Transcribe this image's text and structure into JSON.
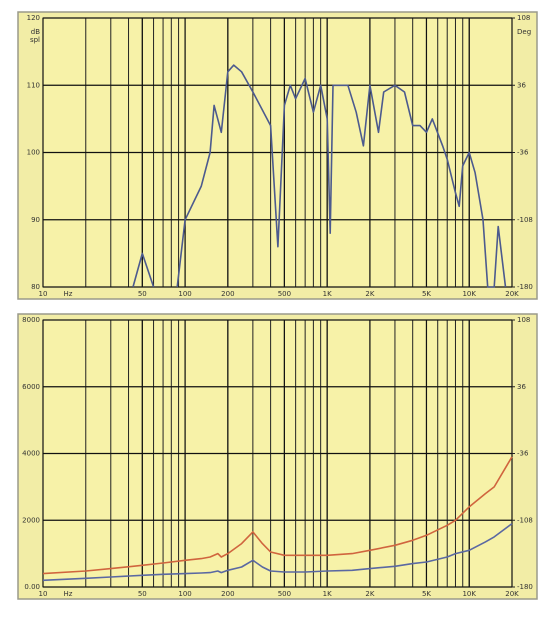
{
  "chart_data": [
    {
      "type": "line",
      "xscale": "log",
      "grid": true,
      "ylabel": [
        "dB",
        "spl"
      ],
      "y2label": "Deg",
      "xlabel": "Hz",
      "xlim": [
        10,
        20000
      ],
      "ylim": [
        80,
        120
      ],
      "y2lim": [
        -180,
        108
      ],
      "xticks": [
        10,
        50,
        100,
        200,
        500,
        {
          "value": 1000,
          "label": "1K"
        },
        {
          "value": 2000,
          "label": "2K"
        },
        {
          "value": 5000,
          "label": "5K"
        },
        {
          "value": 10000,
          "label": "10K"
        },
        {
          "value": 20000,
          "label": "20K"
        }
      ],
      "yticks": [
        80,
        90,
        100,
        110,
        120
      ],
      "y2ticks": [
        -180,
        -108,
        -36,
        36,
        108
      ],
      "series": [
        {
          "color": "#4c5a8e",
          "x": [
            43,
            50,
            60,
            75,
            88,
            100,
            130,
            150,
            160,
            180,
            200,
            220,
            250,
            300,
            400,
            450,
            500,
            550,
            600,
            700,
            800,
            900,
            1000,
            1050,
            1100,
            1400,
            1600,
            1800,
            2000,
            2300,
            2500,
            3000,
            3500,
            4000,
            4500,
            5000,
            5500,
            6500,
            7000,
            8000,
            8500,
            9000,
            10000,
            11000,
            12500,
            13500,
            15000,
            16000,
            18000
          ],
          "values": [
            80,
            85,
            80,
            null,
            80,
            90,
            95,
            100,
            107,
            103,
            112,
            113,
            112,
            109,
            104,
            86,
            107,
            110,
            108,
            111,
            106,
            110,
            105,
            88,
            110,
            110,
            106,
            101,
            110,
            103,
            109,
            110,
            109,
            104,
            104,
            103,
            105,
            101,
            99,
            94,
            92,
            98,
            100,
            97,
            90,
            80,
            80,
            89,
            80
          ]
        }
      ]
    },
    {
      "type": "line",
      "xscale": "log",
      "grid": true,
      "xlabel": "Hz",
      "xlim": [
        10,
        20000
      ],
      "ylim": [
        0,
        8000
      ],
      "y2lim": [
        -180,
        108
      ],
      "xticks": [
        10,
        50,
        100,
        200,
        500,
        {
          "value": 1000,
          "label": "1K"
        },
        {
          "value": 2000,
          "label": "2K"
        },
        {
          "value": 5000,
          "label": "5K"
        },
        {
          "value": 10000,
          "label": "10K"
        },
        {
          "value": 20000,
          "label": "20K"
        }
      ],
      "yticks": [
        {
          "value": 0,
          "label": "0.00"
        },
        2000,
        4000,
        6000,
        8000
      ],
      "y2ticks": [
        -180,
        -108,
        -36,
        36,
        108
      ],
      "series": [
        {
          "color": "#d0653e",
          "x": [
            10,
            20,
            30,
            50,
            70,
            100,
            130,
            150,
            170,
            180,
            200,
            250,
            300,
            350,
            400,
            500,
            700,
            1000,
            1500,
            2000,
            3000,
            4000,
            5000,
            7000,
            8000,
            10000,
            13000,
            15000,
            20000
          ],
          "values": [
            400,
            480,
            550,
            650,
            720,
            800,
            850,
            900,
            1000,
            900,
            1000,
            1300,
            1650,
            1300,
            1050,
            950,
            950,
            950,
            1000,
            1100,
            1250,
            1400,
            1550,
            1850,
            2000,
            2400,
            2800,
            3000,
            3900
          ]
        },
        {
          "color": "#5a68a2",
          "x": [
            10,
            20,
            30,
            50,
            70,
            100,
            130,
            150,
            170,
            180,
            200,
            250,
            300,
            350,
            400,
            500,
            700,
            1000,
            1500,
            2000,
            3000,
            4000,
            5000,
            7000,
            8000,
            10000,
            13000,
            15000,
            20000
          ],
          "values": [
            200,
            260,
            300,
            350,
            380,
            400,
            420,
            430,
            480,
            430,
            500,
            600,
            800,
            600,
            480,
            450,
            450,
            480,
            500,
            550,
            620,
            700,
            750,
            900,
            1000,
            1100,
            1350,
            1500,
            1900
          ]
        }
      ]
    }
  ]
}
